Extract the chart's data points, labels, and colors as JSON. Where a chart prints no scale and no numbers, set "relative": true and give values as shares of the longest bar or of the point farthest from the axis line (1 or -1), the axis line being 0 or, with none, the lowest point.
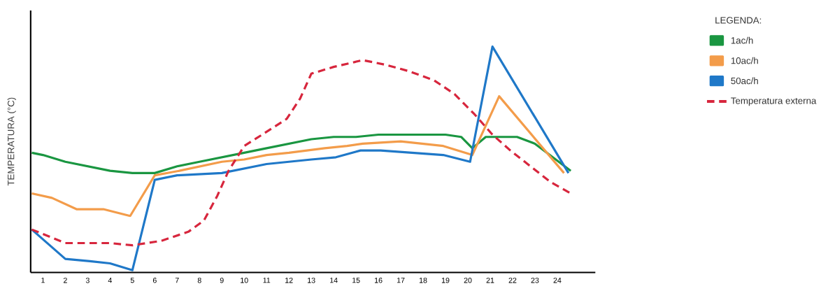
{
  "chart_data": {
    "type": "line",
    "ylabel": "TEMPERATURA (°C)",
    "legend_title": "LEGENDA:",
    "relative": true,
    "legend": "right",
    "marker": "none",
    "xlim": [
      0.45,
      25.7
    ],
    "xticks": [
      1,
      2,
      3,
      4,
      5,
      6,
      7,
      8,
      9,
      10,
      11,
      12,
      13,
      14,
      15,
      16,
      17,
      18,
      19,
      20,
      21,
      22,
      23,
      24
    ],
    "series": [
      {
        "name": "1ac/h",
        "color": "#1a9641",
        "line_style": "solid",
        "x": [
          0.5,
          1,
          2,
          3,
          4,
          5,
          6,
          7,
          8,
          9,
          10,
          11,
          12,
          13,
          14,
          15,
          16,
          17,
          18,
          19,
          19.7,
          20.2,
          20.8,
          22.2,
          23,
          24.6
        ],
        "values": [
          0.53,
          0.52,
          0.49,
          0.47,
          0.45,
          0.44,
          0.44,
          0.47,
          0.49,
          0.51,
          0.53,
          0.55,
          0.57,
          0.59,
          0.6,
          0.6,
          0.61,
          0.61,
          0.61,
          0.61,
          0.6,
          0.55,
          0.6,
          0.6,
          0.57,
          0.45
        ]
      },
      {
        "name": "10ac/h",
        "color": "#f39c4a",
        "line_style": "solid",
        "x": [
          0.5,
          1.4,
          2.5,
          3.7,
          4.9,
          6,
          7.1,
          9,
          10,
          11,
          12,
          13.6,
          14.6,
          15.3,
          17,
          18.9,
          20.2,
          21.4,
          24.3
        ],
        "values": [
          0.35,
          0.33,
          0.28,
          0.28,
          0.25,
          0.43,
          0.45,
          0.49,
          0.5,
          0.52,
          0.53,
          0.55,
          0.56,
          0.57,
          0.58,
          0.56,
          0.52,
          0.78,
          0.44
        ]
      },
      {
        "name": "50ac/h",
        "color": "#1f78c8",
        "line_style": "solid",
        "x": [
          0.5,
          2,
          3.1,
          4,
          5,
          6,
          7,
          9,
          11,
          12,
          13,
          14.1,
          15.2,
          16.1,
          18.9,
          20.1,
          21.1,
          24.5
        ],
        "values": [
          0.19,
          0.06,
          0.05,
          0.04,
          0.01,
          0.41,
          0.43,
          0.44,
          0.48,
          0.49,
          0.5,
          0.51,
          0.54,
          0.54,
          0.52,
          0.49,
          1.0,
          0.44
        ]
      },
      {
        "name": "Temperatura externa",
        "color": "#d7263d",
        "line_style": "dashed",
        "x": [
          0.5,
          2,
          3,
          4,
          5,
          6.3,
          7.5,
          8.2,
          8.8,
          9.3,
          10,
          10.8,
          11.9,
          12.5,
          13,
          14,
          15.3,
          16.3,
          17.4,
          18.5,
          19.4,
          20.3,
          21.1,
          21.9,
          22.8,
          23.7,
          24.6
        ],
        "values": [
          0.19,
          0.13,
          0.13,
          0.13,
          0.12,
          0.14,
          0.18,
          0.23,
          0.34,
          0.45,
          0.56,
          0.61,
          0.68,
          0.77,
          0.88,
          0.91,
          0.94,
          0.92,
          0.89,
          0.85,
          0.79,
          0.7,
          0.61,
          0.54,
          0.47,
          0.4,
          0.35
        ]
      }
    ]
  }
}
